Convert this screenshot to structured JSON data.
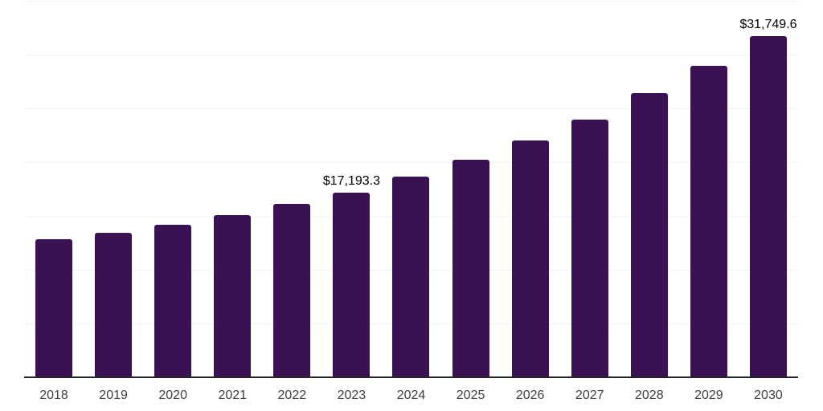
{
  "chart_data": {
    "type": "bar",
    "categories": [
      "2018",
      "2019",
      "2020",
      "2021",
      "2022",
      "2023",
      "2024",
      "2025",
      "2026",
      "2027",
      "2028",
      "2029",
      "2030"
    ],
    "values": [
      12800,
      13450,
      14200,
      15100,
      16150,
      17193.3,
      18650,
      20200,
      22000,
      23950,
      26400,
      28950,
      31749.6
    ],
    "data_labels": {
      "2023": "$17,193.3",
      "2030": "$31,749.6"
    },
    "title": "",
    "xlabel": "",
    "ylabel": "",
    "ylim": [
      0,
      35000
    ],
    "gridline_step": 5000,
    "grid": "horizontal-only",
    "y_tick_labels_visible": false,
    "legend": "none",
    "colors": {
      "bar": "#3A1152",
      "gridline": "#F2F2F5",
      "axis_line": "#262626",
      "tick_label": "#3D3D3D",
      "data_label": "#000000",
      "background": "#FFFFFF"
    }
  }
}
